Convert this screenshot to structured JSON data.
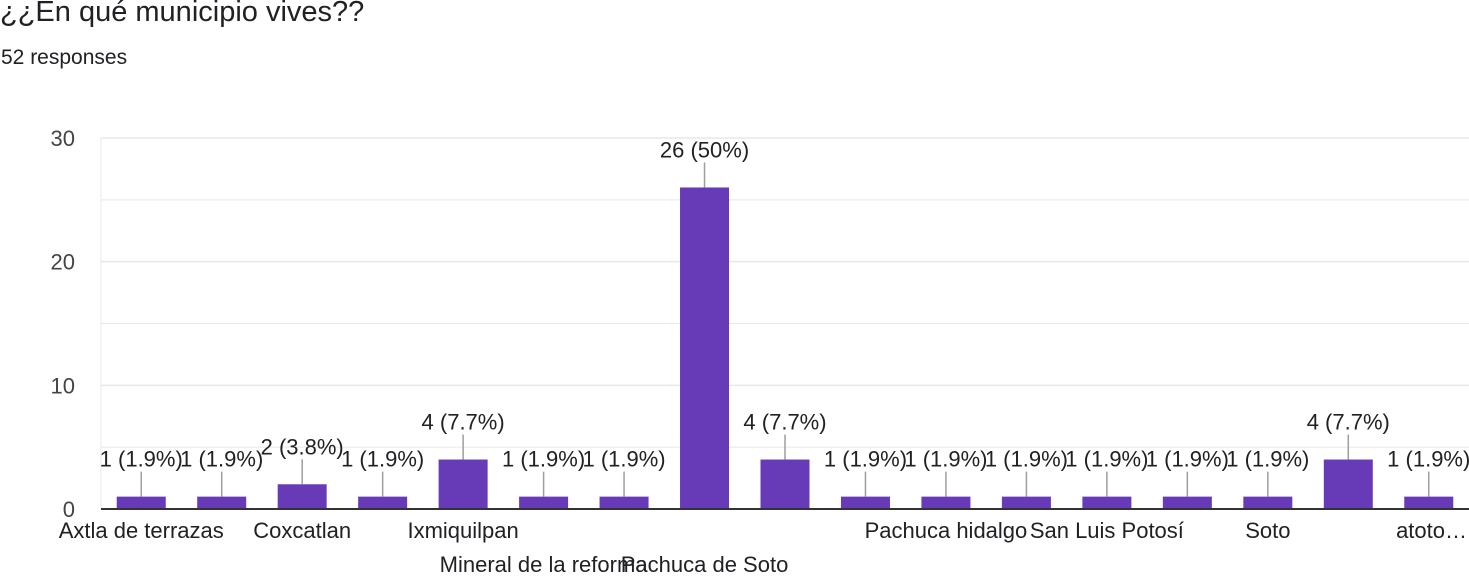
{
  "header": {
    "title": "¿¿En qué municipio vives??",
    "subtitle": "52 responses"
  },
  "colors": {
    "bar": "#673ab7",
    "grid": "#e8e8e8",
    "axis": "#333333",
    "text": "#202124",
    "connector": "#9e9e9e"
  },
  "chart_data": {
    "type": "bar",
    "categories": [
      "Axtla de terrazas",
      "",
      "Coxcatlan",
      "",
      "Ixmiquilpan",
      "Mineral de la reforma",
      "",
      "Pachuca de Soto",
      "",
      "",
      "Pachuca hidalgo",
      "",
      "San Luis Potosí",
      "",
      "Soto",
      "",
      "atoto…"
    ],
    "values": [
      1,
      1,
      2,
      1,
      4,
      1,
      1,
      26,
      4,
      1,
      1,
      1,
      1,
      1,
      1,
      4,
      1
    ],
    "data_labels": [
      "1 (1.9%)",
      "1 (1.9%)",
      "2 (3.8%)",
      "1 (1.9%)",
      "4 (7.7%)",
      "1 (1.9%)",
      "1 (1.9%)",
      "26 (50%)",
      "4 (7.7%)",
      "1 (1.9%)",
      "1 (1.9%)",
      "1 (1.9%)",
      "1 (1.9%)",
      "1 (1.9%)",
      "1 (1.9%)",
      "4 (7.7%)",
      "1 (1.9%)"
    ],
    "y_ticks": [
      "0",
      "10",
      "20",
      "30"
    ],
    "ylim": [
      0,
      30
    ],
    "grid": true,
    "xlabel": "",
    "ylabel": ""
  }
}
